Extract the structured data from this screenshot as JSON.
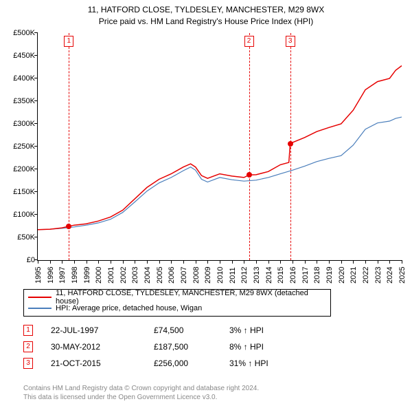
{
  "title": {
    "line1": "11, HATFORD CLOSE, TYLDESLEY, MANCHESTER, M29 8WX",
    "line2": "Price paid vs. HM Land Registry's House Price Index (HPI)"
  },
  "chart": {
    "type": "line",
    "background_color": "#ffffff",
    "axis_color": "#000000",
    "y_axis": {
      "min": 0,
      "max": 500000,
      "ticks": [
        "£0",
        "£50K",
        "£100K",
        "£150K",
        "£200K",
        "£250K",
        "£300K",
        "£350K",
        "£400K",
        "£450K",
        "£500K"
      ],
      "tick_fontsize": 11
    },
    "x_axis": {
      "min": 1995,
      "max": 2025,
      "ticks": [
        1995,
        1996,
        1997,
        1998,
        1999,
        2000,
        2001,
        2002,
        2003,
        2004,
        2005,
        2006,
        2007,
        2008,
        2009,
        2010,
        2011,
        2012,
        2013,
        2014,
        2015,
        2016,
        2017,
        2018,
        2019,
        2020,
        2021,
        2022,
        2023,
        2024,
        2025
      ],
      "tick_fontsize": 11,
      "label_rotation": -90
    },
    "series": [
      {
        "name": "11, HATFORD CLOSE, TYLDESLEY, MANCHESTER, M29 8WX (detached house)",
        "color": "#e60000",
        "line_width": 1.5,
        "points": [
          [
            1995,
            67000
          ],
          [
            1996,
            68000
          ],
          [
            1997,
            71000
          ],
          [
            1997.56,
            74500
          ],
          [
            1998,
            77000
          ],
          [
            1999,
            80000
          ],
          [
            2000,
            86000
          ],
          [
            2001,
            95000
          ],
          [
            2002,
            110000
          ],
          [
            2003,
            135000
          ],
          [
            2004,
            160000
          ],
          [
            2005,
            178000
          ],
          [
            2006,
            190000
          ],
          [
            2007,
            205000
          ],
          [
            2007.6,
            212000
          ],
          [
            2008,
            205000
          ],
          [
            2008.5,
            186000
          ],
          [
            2009,
            180000
          ],
          [
            2010,
            190000
          ],
          [
            2011,
            185000
          ],
          [
            2012,
            182000
          ],
          [
            2012.41,
            187500
          ],
          [
            2013,
            188000
          ],
          [
            2014,
            195000
          ],
          [
            2015,
            210000
          ],
          [
            2015.7,
            215000
          ],
          [
            2015.81,
            256000
          ],
          [
            2016,
            259000
          ],
          [
            2017,
            270000
          ],
          [
            2018,
            283000
          ],
          [
            2019,
            292000
          ],
          [
            2020,
            300000
          ],
          [
            2021,
            330000
          ],
          [
            2022,
            375000
          ],
          [
            2023,
            393000
          ],
          [
            2024,
            400000
          ],
          [
            2024.5,
            418000
          ],
          [
            2025,
            428000
          ]
        ]
      },
      {
        "name": "HPI: Average price, detached house, Wigan",
        "color": "#4a7ebb",
        "line_width": 1.2,
        "points": [
          [
            1995,
            67000
          ],
          [
            1996,
            68000
          ],
          [
            1997,
            70000
          ],
          [
            1998,
            73000
          ],
          [
            1999,
            77000
          ],
          [
            2000,
            82000
          ],
          [
            2001,
            90000
          ],
          [
            2002,
            105000
          ],
          [
            2003,
            128000
          ],
          [
            2004,
            152000
          ],
          [
            2005,
            170000
          ],
          [
            2006,
            182000
          ],
          [
            2007,
            197000
          ],
          [
            2007.6,
            205000
          ],
          [
            2008,
            198000
          ],
          [
            2008.5,
            178000
          ],
          [
            2009,
            172000
          ],
          [
            2010,
            182000
          ],
          [
            2011,
            177000
          ],
          [
            2012,
            174000
          ],
          [
            2013,
            176000
          ],
          [
            2014,
            182000
          ],
          [
            2015,
            190000
          ],
          [
            2016,
            198000
          ],
          [
            2017,
            207000
          ],
          [
            2018,
            217000
          ],
          [
            2019,
            224000
          ],
          [
            2020,
            230000
          ],
          [
            2021,
            253000
          ],
          [
            2022,
            288000
          ],
          [
            2023,
            302000
          ],
          [
            2024,
            306000
          ],
          [
            2024.5,
            312000
          ],
          [
            2025,
            315000
          ]
        ]
      }
    ],
    "markers": [
      {
        "n": 1,
        "label": "1",
        "year": 1997.56,
        "value": 74500,
        "line_color": "#e60000",
        "box_border": "#e60000",
        "dot_color": "#e60000"
      },
      {
        "n": 2,
        "label": "2",
        "year": 2012.41,
        "value": 187500,
        "line_color": "#e60000",
        "box_border": "#e60000",
        "dot_color": "#e60000"
      },
      {
        "n": 3,
        "label": "3",
        "year": 2015.81,
        "value": 256000,
        "line_color": "#e60000",
        "box_border": "#e60000",
        "dot_color": "#e60000"
      }
    ]
  },
  "legend": {
    "border_color": "#000000",
    "fontsize": 11,
    "items": [
      {
        "color": "#e60000",
        "label": "11, HATFORD CLOSE, TYLDESLEY, MANCHESTER, M29 8WX (detached house)"
      },
      {
        "color": "#4a7ebb",
        "label": "HPI: Average price, detached house, Wigan"
      }
    ]
  },
  "sales": {
    "box_border_color": "#e60000",
    "rows": [
      {
        "n": "1",
        "date": "22-JUL-1997",
        "price": "£74,500",
        "hpi_delta": "3% ↑ HPI"
      },
      {
        "n": "2",
        "date": "30-MAY-2012",
        "price": "£187,500",
        "hpi_delta": "8% ↑ HPI"
      },
      {
        "n": "3",
        "date": "21-OCT-2015",
        "price": "£256,000",
        "hpi_delta": "31% ↑ HPI"
      }
    ]
  },
  "disclaimer": {
    "color": "#888888",
    "line1": "Contains HM Land Registry data © Crown copyright and database right 2024.",
    "line2": "This data is licensed under the Open Government Licence v3.0."
  }
}
